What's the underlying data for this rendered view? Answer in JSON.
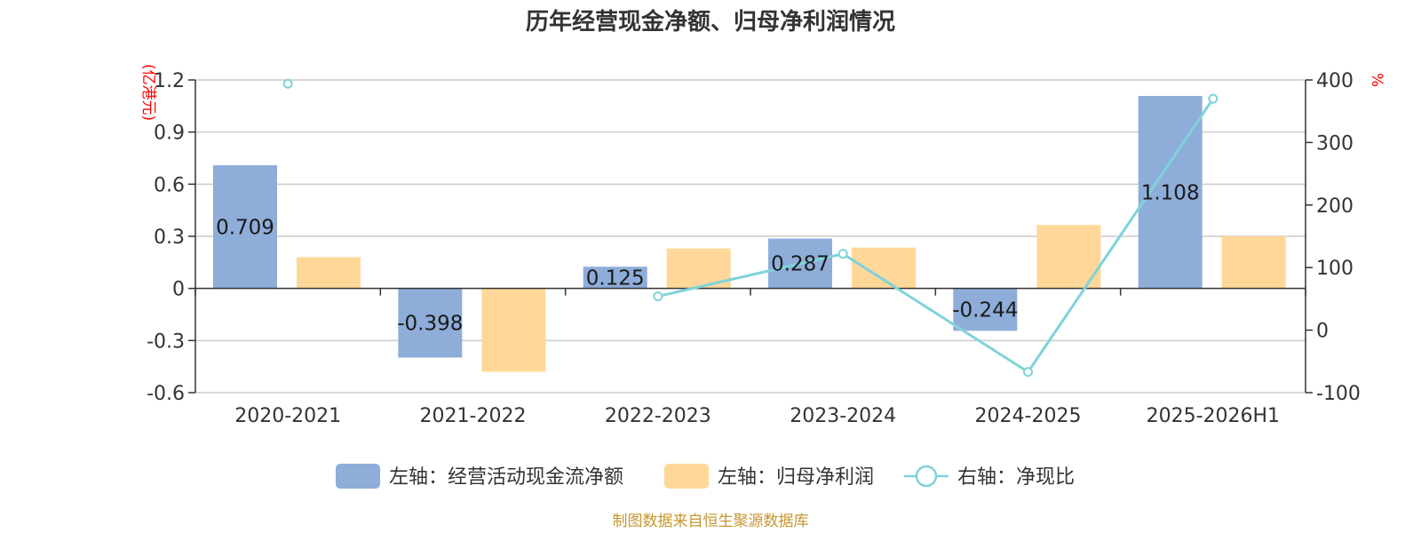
{
  "chart_data": {
    "type": "bar+line",
    "title": "历年经营现金净额、归母净利润情况",
    "categories": [
      "2020-2021",
      "2021-2022",
      "2022-2023",
      "2023-2024",
      "2024-2025",
      "2025-2026H1"
    ],
    "left_axis": {
      "unit": "(亿港元)",
      "ticks": [
        "1.2",
        "0.9",
        "0.6",
        "0.3",
        "0",
        "-0.3",
        "-0.6"
      ],
      "ylim": [
        -0.6,
        1.2
      ]
    },
    "right_axis": {
      "unit": "%",
      "ticks": [
        "400",
        "300",
        "200",
        "100",
        "0",
        "-100"
      ],
      "ylim": [
        -100,
        400
      ]
    },
    "series": [
      {
        "name": "左轴：经营活动现金流净额",
        "type": "bar",
        "axis": "left",
        "values": [
          0.709,
          -0.398,
          0.125,
          0.287,
          -0.244,
          1.108
        ],
        "labels": [
          "0.709",
          "-0.398",
          "0.125",
          "0.287",
          "-0.244",
          "1.108"
        ]
      },
      {
        "name": "左轴：归母净利润",
        "type": "bar",
        "axis": "left",
        "values": [
          0.18,
          -0.48,
          0.23,
          0.235,
          0.365,
          0.3
        ]
      },
      {
        "name": "右轴：净现比",
        "type": "line",
        "axis": "right",
        "values": [
          394,
          null,
          54,
          122,
          -67,
          370
        ]
      }
    ],
    "legend_position": "bottom",
    "grid": true,
    "colors": {
      "bar1": "#8eadd9",
      "bar2": "#ffd899",
      "line": "#7fd3d9",
      "unit": "#ff0000",
      "source": "#c8962e",
      "grid": "#cccccc",
      "axis": "#333333"
    }
  },
  "source_note": "制图数据来自恒生聚源数据库"
}
